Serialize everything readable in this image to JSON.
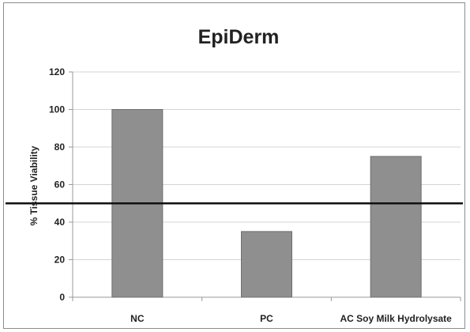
{
  "chart_data": {
    "type": "bar",
    "title": "EpiDerm",
    "xlabel": "",
    "ylabel": "% Tissue Viability",
    "categories": [
      "NC",
      "PC",
      "AC Soy Milk Hydrolysate"
    ],
    "values": [
      100,
      35,
      75
    ],
    "ylim": [
      0,
      120
    ],
    "yticks": [
      0,
      20,
      40,
      60,
      80,
      100,
      120
    ],
    "grid": true,
    "reference_line": 50,
    "colors": {
      "bar": "#8f8f8f",
      "bar_edge": "#6e6e6e",
      "grid": "#d4d4d4",
      "axis": "#9a9a9a",
      "reference_line": "#111111"
    }
  }
}
